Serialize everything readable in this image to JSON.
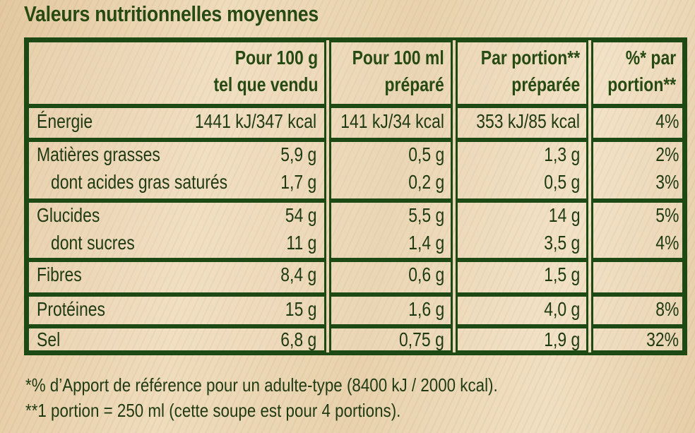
{
  "title": "Valeurs nutritionnelles moyennes",
  "headers": {
    "col1_line1": "Pour 100 g",
    "col1_line2": "tel que vendu",
    "col2_line1": "Pour 100 ml",
    "col2_line2": "préparé",
    "col3_line1": "Par portion**",
    "col3_line2": "préparée",
    "col4_line1": "%* par",
    "col4_line2": "portion**"
  },
  "rows": [
    {
      "label": "Énergie",
      "c1": "1441 kJ/347 kcal",
      "c2": "141 kJ/34 kcal",
      "c3": "353 kJ/85 kcal",
      "c4": "4%"
    },
    {
      "label": "Matières grasses",
      "c1": "5,9 g",
      "c2": "0,5 g",
      "c3": "1,3 g",
      "c4": "2%"
    },
    {
      "label": "dont acides gras saturés",
      "c1": "1,7 g",
      "c2": "0,2 g",
      "c3": "0,5 g",
      "c4": "3%"
    },
    {
      "label": "Glucides",
      "c1": "54 g",
      "c2": "5,5 g",
      "c3": "14 g",
      "c4": "5%"
    },
    {
      "label": "dont sucres",
      "c1": "11 g",
      "c2": "1,4 g",
      "c3": "3,5 g",
      "c4": "4%"
    },
    {
      "label": "Fibres",
      "c1": "8,4 g",
      "c2": "0,6 g",
      "c3": "1,5 g",
      "c4": ""
    },
    {
      "label": "Protéines",
      "c1": "15 g",
      "c2": "1,6 g",
      "c3": "4,0 g",
      "c4": "8%"
    },
    {
      "label": "Sel",
      "c1": "6,8 g",
      "c2": "0,75 g",
      "c3": "1,9 g",
      "c4": "32%"
    }
  ],
  "footnotes": [
    "*% d’Apport de référence pour un adulte-type (8400 kJ / 2000 kcal).",
    "**1 portion = 250 ml (cette soupe est pour 4 portions)."
  ]
}
